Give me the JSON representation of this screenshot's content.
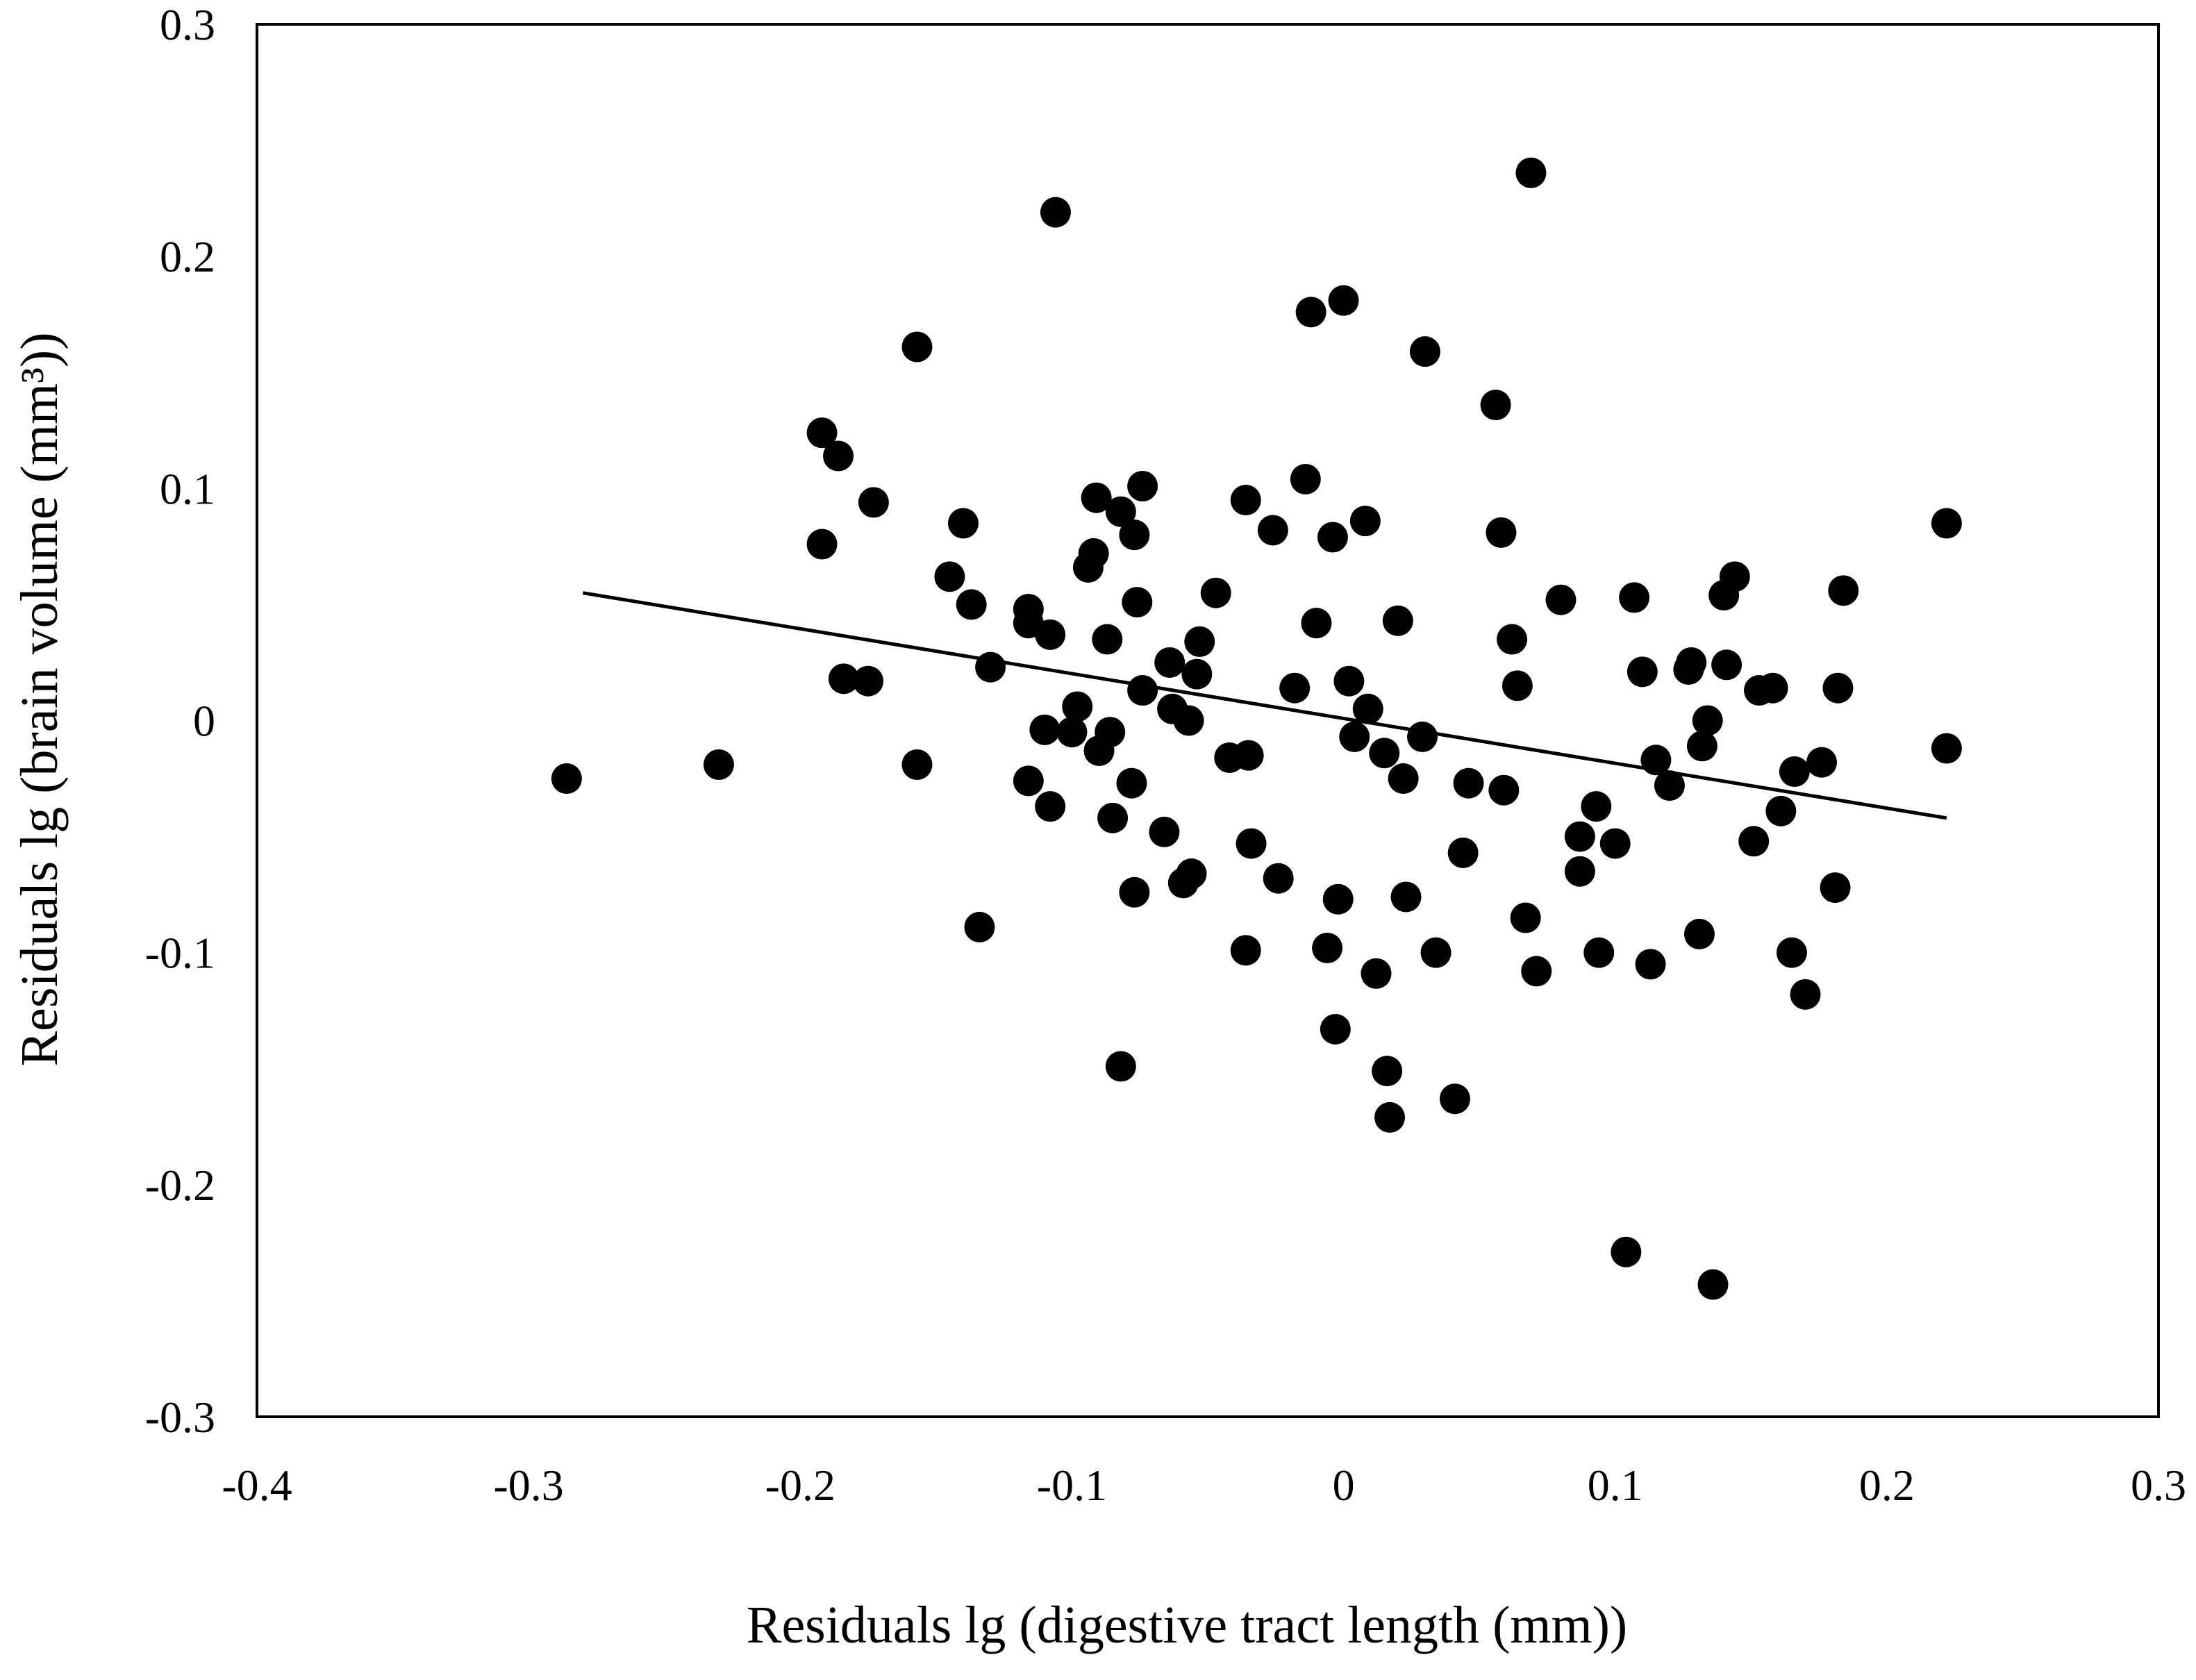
{
  "chart_data": {
    "type": "scatter",
    "xlabel": "Residuals lg (digestive tract length (mm))",
    "ylabel": "Residuals lg (brain volume (mm³))",
    "xlim": [
      -0.4,
      0.3
    ],
    "ylim": [
      -0.3,
      0.3
    ],
    "x_ticks": [
      -0.4,
      -0.3,
      -0.2,
      -0.1,
      0,
      0.1,
      0.2,
      0.3
    ],
    "x_tick_labels": [
      "-0.4",
      "-0.3",
      "-0.2",
      "-0.1",
      "0",
      "0.1",
      "0.2",
      "0.3"
    ],
    "y_ticks": [
      0.3,
      0.2,
      0.1,
      0,
      -0.1,
      -0.2,
      -0.3
    ],
    "y_tick_labels": [
      "0.3",
      "0.2",
      "0.1",
      "0",
      "-0.1",
      "-0.2",
      "-0.3"
    ],
    "grid": false,
    "legend": "none",
    "marker_color": "#000000",
    "trendline": {
      "x": [
        -0.28,
        0.222
      ],
      "y": [
        0.055,
        -0.042
      ]
    },
    "series": [
      {
        "points": [
          [
            -0.286,
            -0.025
          ],
          [
            -0.23,
            -0.019
          ],
          [
            -0.192,
            0.124
          ],
          [
            -0.186,
            0.114
          ],
          [
            -0.173,
            0.094
          ],
          [
            -0.192,
            0.076
          ],
          [
            -0.184,
            0.018
          ],
          [
            -0.175,
            0.017
          ],
          [
            -0.157,
            0.161
          ],
          [
            -0.157,
            -0.019
          ],
          [
            -0.145,
            0.062
          ],
          [
            -0.14,
            0.085
          ],
          [
            -0.137,
            0.05
          ],
          [
            -0.134,
            -0.089
          ],
          [
            -0.13,
            0.023
          ],
          [
            -0.116,
            0.048
          ],
          [
            -0.116,
            0.042
          ],
          [
            -0.116,
            -0.026
          ],
          [
            -0.11,
            -0.004
          ],
          [
            -0.108,
            0.037
          ],
          [
            -0.108,
            -0.037
          ],
          [
            -0.106,
            0.219
          ],
          [
            -0.1,
            -0.005
          ],
          [
            -0.098,
            0.006
          ],
          [
            -0.094,
            0.066
          ],
          [
            -0.092,
            0.072
          ],
          [
            -0.091,
            0.096
          ],
          [
            -0.09,
            -0.013
          ],
          [
            -0.087,
            0.035
          ],
          [
            -0.086,
            -0.005
          ],
          [
            -0.085,
            -0.042
          ],
          [
            -0.082,
            0.09
          ],
          [
            -0.082,
            -0.149
          ],
          [
            -0.078,
            -0.027
          ],
          [
            -0.077,
            0.08
          ],
          [
            -0.077,
            -0.074
          ],
          [
            -0.076,
            0.051
          ],
          [
            -0.074,
            0.101
          ],
          [
            -0.074,
            0.013
          ],
          [
            -0.066,
            -0.048
          ],
          [
            -0.064,
            0.025
          ],
          [
            -0.063,
            0.005
          ],
          [
            -0.059,
            -0.07
          ],
          [
            -0.057,
            0
          ],
          [
            -0.056,
            -0.066
          ],
          [
            -0.054,
            0.02
          ],
          [
            -0.053,
            0.034
          ],
          [
            -0.047,
            0.055
          ],
          [
            -0.042,
            -0.016
          ],
          [
            -0.036,
            0.095
          ],
          [
            -0.036,
            -0.099
          ],
          [
            -0.035,
            -0.015
          ],
          [
            -0.034,
            -0.053
          ],
          [
            -0.026,
            0.082
          ],
          [
            -0.024,
            -0.068
          ],
          [
            -0.018,
            0.014
          ],
          [
            -0.014,
            0.104
          ],
          [
            -0.012,
            0.176
          ],
          [
            -0.01,
            0.042
          ],
          [
            -0.006,
            -0.098
          ],
          [
            -0.004,
            0.079
          ],
          [
            -0.003,
            -0.133
          ],
          [
            -0.002,
            -0.077
          ],
          [
            0,
            0.181
          ],
          [
            0.002,
            0.017
          ],
          [
            0.004,
            -0.007
          ],
          [
            0.008,
            0.086
          ],
          [
            0.009,
            0.005
          ],
          [
            0.012,
            -0.109
          ],
          [
            0.015,
            -0.014
          ],
          [
            0.016,
            -0.151
          ],
          [
            0.017,
            -0.171
          ],
          [
            0.02,
            0.043
          ],
          [
            0.022,
            -0.025
          ],
          [
            0.023,
            -0.076
          ],
          [
            0.029,
            -0.007
          ],
          [
            0.03,
            0.159
          ],
          [
            0.034,
            -0.1
          ],
          [
            0.041,
            -0.163
          ],
          [
            0.044,
            -0.057
          ],
          [
            0.046,
            -0.027
          ],
          [
            0.056,
            0.136
          ],
          [
            0.058,
            0.081
          ],
          [
            0.059,
            -0.03
          ],
          [
            0.062,
            0.035
          ],
          [
            0.064,
            0.015
          ],
          [
            0.067,
            -0.085
          ],
          [
            0.069,
            0.236
          ],
          [
            0.071,
            -0.108
          ],
          [
            0.08,
            0.052
          ],
          [
            0.087,
            -0.05
          ],
          [
            0.087,
            -0.065
          ],
          [
            0.093,
            -0.037
          ],
          [
            0.094,
            -0.1
          ],
          [
            0.1,
            -0.053
          ],
          [
            0.104,
            -0.229
          ],
          [
            0.107,
            0.053
          ],
          [
            0.11,
            0.021
          ],
          [
            0.113,
            -0.105
          ],
          [
            0.115,
            -0.017
          ],
          [
            0.12,
            -0.028
          ],
          [
            0.127,
            0.022
          ],
          [
            0.128,
            0.025
          ],
          [
            0.131,
            -0.092
          ],
          [
            0.132,
            -0.011
          ],
          [
            0.134,
            0
          ],
          [
            0.136,
            -0.243
          ],
          [
            0.14,
            0.054
          ],
          [
            0.141,
            0.024
          ],
          [
            0.144,
            0.062
          ],
          [
            0.151,
            -0.052
          ],
          [
            0.153,
            0.013
          ],
          [
            0.158,
            0.014
          ],
          [
            0.161,
            -0.039
          ],
          [
            0.165,
            -0.1
          ],
          [
            0.166,
            -0.022
          ],
          [
            0.17,
            -0.118
          ],
          [
            0.176,
            -0.018
          ],
          [
            0.181,
            -0.072
          ],
          [
            0.182,
            0.014
          ],
          [
            0.184,
            0.056
          ],
          [
            0.222,
            0.085
          ],
          [
            0.222,
            -0.012
          ]
        ]
      }
    ]
  }
}
